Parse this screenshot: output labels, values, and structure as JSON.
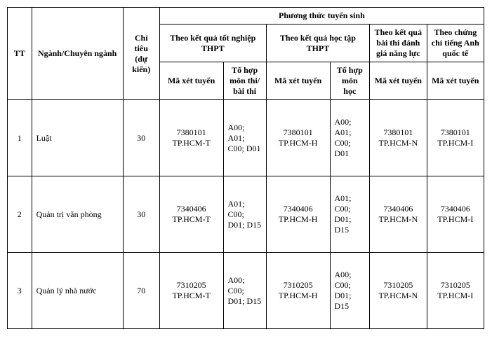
{
  "headers": {
    "tt": "TT",
    "nganh": "Ngành/Chuyên ngành",
    "chitieu": "Chỉ tiêu (dự kiến)",
    "phuongthuc": "Phương thức tuyển sinh",
    "thpt_kq": "Theo kết quả tốt nghiệp  THPT",
    "thpt_ht": "Theo kết quả học tập THPT",
    "nangluc": "Theo kết quả bài thi đánh giá năng lực",
    "anh": "Theo chứng chỉ tiếng Anh quốc tế",
    "ma_xet_tuyen": "Mã xét tuyển",
    "to_hop_thi": "Tổ hợp môn thi/ bài thi",
    "to_hop_hoc": "Tổ hợp môn học"
  },
  "rows": [
    {
      "tt": "1",
      "nganh": "Luật",
      "chitieu": "30",
      "ma1": "7380101 TP.HCM-T",
      "th1": "A00; A01; C00; D01",
      "ma2": "7380101 TP.HCM-H",
      "th2": "A00; A01; C00; D01",
      "ma3": "7380101 TP.HCM-N",
      "ma4": "7380101 TP.HCM-I"
    },
    {
      "tt": "2",
      "nganh": "Quản trị văn phòng",
      "chitieu": "30",
      "ma1": "7340406 TP.HCM-T",
      "th1": "A01; C00; D01; D15",
      "ma2": "7340406 TP.HCM-H",
      "th2": "A01; C00; D01; D15",
      "ma3": "7340406 TP.HCM-N",
      "ma4": "7340406 TP.HCM-I"
    },
    {
      "tt": "3",
      "nganh": "Quản lý nhà nước",
      "chitieu": "70",
      "ma1": "7310205 TP.HCM-T",
      "th1": "A00; C00; D01; D15",
      "ma2": "7310205 TP.HCM-H",
      "th2": "A00; C00; D01; D15",
      "ma3": "7310205 TP.HCM-N",
      "ma4": "7310205 TP.HCM-I"
    }
  ]
}
